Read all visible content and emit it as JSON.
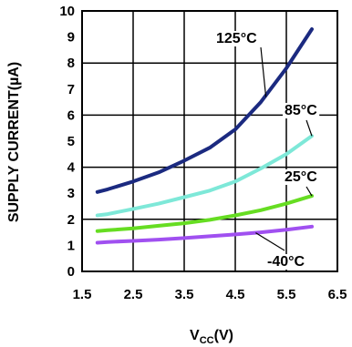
{
  "chart_data": {
    "type": "line",
    "title": "",
    "xlabel": {
      "main": "V",
      "sub": "CC",
      "unit": "(V)"
    },
    "ylabel": "SUPPLY CURRENT(µA)",
    "xlim": [
      1.5,
      6.5
    ],
    "ylim": [
      0,
      10
    ],
    "xticks": [
      "1.5",
      "2.5",
      "3.5",
      "4.5",
      "5.5",
      "6.5"
    ],
    "yticks": [
      "0",
      "1",
      "2",
      "3",
      "4",
      "5",
      "6",
      "7",
      "8",
      "9",
      "10"
    ],
    "grid": true,
    "series": [
      {
        "name": "125°C",
        "color": "#1b2a80",
        "x": [
          1.8,
          2.0,
          2.5,
          3.0,
          3.5,
          4.0,
          4.5,
          5.0,
          5.5,
          6.0
        ],
        "y": [
          3.05,
          3.15,
          3.45,
          3.8,
          4.25,
          4.75,
          5.45,
          6.5,
          7.8,
          9.3
        ]
      },
      {
        "name": "85°C",
        "color": "#7ee8d8",
        "x": [
          1.8,
          2.0,
          2.5,
          3.0,
          3.5,
          4.0,
          4.5,
          5.0,
          5.5,
          6.0
        ],
        "y": [
          2.15,
          2.2,
          2.4,
          2.6,
          2.85,
          3.1,
          3.45,
          3.95,
          4.5,
          5.2
        ]
      },
      {
        "name": "25°C",
        "color": "#66dd22",
        "x": [
          1.8,
          2.0,
          2.5,
          3.0,
          3.5,
          4.0,
          4.5,
          5.0,
          5.5,
          6.0
        ],
        "y": [
          1.55,
          1.58,
          1.65,
          1.75,
          1.85,
          1.98,
          2.15,
          2.35,
          2.6,
          2.9
        ]
      },
      {
        "name": "-40°C",
        "color": "#a050f0",
        "x": [
          1.8,
          2.0,
          2.5,
          3.0,
          3.5,
          4.0,
          4.5,
          5.0,
          5.5,
          6.0
        ],
        "y": [
          1.1,
          1.13,
          1.17,
          1.22,
          1.28,
          1.35,
          1.42,
          1.5,
          1.6,
          1.72
        ]
      }
    ],
    "annotations": [
      {
        "text": "125°C",
        "series": 0
      },
      {
        "text": "85°C",
        "series": 1
      },
      {
        "text": "25°C",
        "series": 2
      },
      {
        "text": "-40°C",
        "series": 3
      }
    ]
  }
}
